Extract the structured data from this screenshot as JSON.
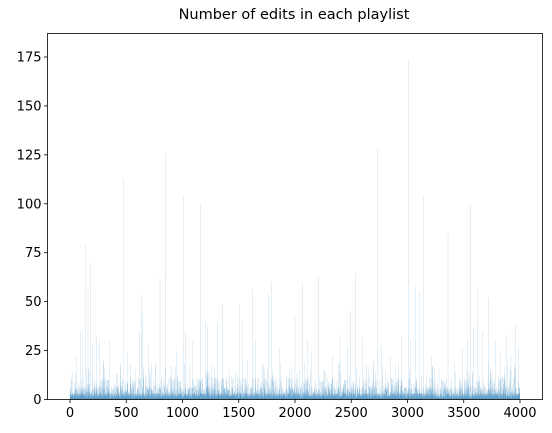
{
  "chart_data": {
    "type": "bar",
    "title": "Number of edits in each playlist",
    "xlabel": "",
    "ylabel": "",
    "xlim": [
      -200,
      4200
    ],
    "ylim": [
      0,
      187
    ],
    "x_ticks": [
      0,
      500,
      1000,
      1500,
      2000,
      2500,
      3000,
      3500,
      4000
    ],
    "y_ticks": [
      0,
      25,
      50,
      75,
      100,
      125,
      150,
      175
    ],
    "grid": false,
    "bar_color": "#1f77b4",
    "n_playlists": 4000,
    "spikes": [
      {
        "x": 60,
        "value": 22
      },
      {
        "x": 95,
        "value": 35
      },
      {
        "x": 108,
        "value": 33
      },
      {
        "x": 140,
        "value": 79
      },
      {
        "x": 160,
        "value": 57
      },
      {
        "x": 182,
        "value": 70
      },
      {
        "x": 200,
        "value": 28
      },
      {
        "x": 235,
        "value": 32
      },
      {
        "x": 262,
        "value": 31
      },
      {
        "x": 300,
        "value": 20
      },
      {
        "x": 350,
        "value": 30
      },
      {
        "x": 420,
        "value": 13
      },
      {
        "x": 478,
        "value": 113
      },
      {
        "x": 510,
        "value": 24
      },
      {
        "x": 535,
        "value": 18
      },
      {
        "x": 580,
        "value": 15
      },
      {
        "x": 618,
        "value": 35
      },
      {
        "x": 635,
        "value": 54
      },
      {
        "x": 648,
        "value": 44
      },
      {
        "x": 700,
        "value": 28
      },
      {
        "x": 760,
        "value": 17
      },
      {
        "x": 800,
        "value": 62
      },
      {
        "x": 845,
        "value": 126
      },
      {
        "x": 890,
        "value": 12
      },
      {
        "x": 945,
        "value": 25
      },
      {
        "x": 1010,
        "value": 104
      },
      {
        "x": 1025,
        "value": 35
      },
      {
        "x": 1090,
        "value": 30
      },
      {
        "x": 1160,
        "value": 100
      },
      {
        "x": 1205,
        "value": 40
      },
      {
        "x": 1225,
        "value": 37
      },
      {
        "x": 1260,
        "value": 18
      },
      {
        "x": 1310,
        "value": 39
      },
      {
        "x": 1355,
        "value": 49
      },
      {
        "x": 1420,
        "value": 15
      },
      {
        "x": 1510,
        "value": 49
      },
      {
        "x": 1530,
        "value": 40
      },
      {
        "x": 1580,
        "value": 20
      },
      {
        "x": 1625,
        "value": 56
      },
      {
        "x": 1650,
        "value": 30
      },
      {
        "x": 1720,
        "value": 18
      },
      {
        "x": 1765,
        "value": 54
      },
      {
        "x": 1790,
        "value": 60
      },
      {
        "x": 1860,
        "value": 26
      },
      {
        "x": 1940,
        "value": 11
      },
      {
        "x": 2000,
        "value": 43
      },
      {
        "x": 2065,
        "value": 60
      },
      {
        "x": 2110,
        "value": 31
      },
      {
        "x": 2150,
        "value": 25
      },
      {
        "x": 2205,
        "value": 63
      },
      {
        "x": 2260,
        "value": 15
      },
      {
        "x": 2330,
        "value": 23
      },
      {
        "x": 2400,
        "value": 33
      },
      {
        "x": 2470,
        "value": 27
      },
      {
        "x": 2495,
        "value": 45
      },
      {
        "x": 2535,
        "value": 65
      },
      {
        "x": 2600,
        "value": 32
      },
      {
        "x": 2650,
        "value": 16
      },
      {
        "x": 2700,
        "value": 20
      },
      {
        "x": 2730,
        "value": 128
      },
      {
        "x": 2765,
        "value": 27
      },
      {
        "x": 2850,
        "value": 22
      },
      {
        "x": 2950,
        "value": 32
      },
      {
        "x": 3005,
        "value": 174
      },
      {
        "x": 3030,
        "value": 30
      },
      {
        "x": 3070,
        "value": 58
      },
      {
        "x": 3110,
        "value": 55
      },
      {
        "x": 3140,
        "value": 104
      },
      {
        "x": 3210,
        "value": 22
      },
      {
        "x": 3280,
        "value": 16
      },
      {
        "x": 3360,
        "value": 85
      },
      {
        "x": 3420,
        "value": 19
      },
      {
        "x": 3490,
        "value": 26
      },
      {
        "x": 3530,
        "value": 30
      },
      {
        "x": 3560,
        "value": 100
      },
      {
        "x": 3585,
        "value": 37
      },
      {
        "x": 3620,
        "value": 58
      },
      {
        "x": 3670,
        "value": 35
      },
      {
        "x": 3720,
        "value": 52
      },
      {
        "x": 3780,
        "value": 30
      },
      {
        "x": 3830,
        "value": 25
      },
      {
        "x": 3880,
        "value": 33
      },
      {
        "x": 3920,
        "value": 23
      },
      {
        "x": 3960,
        "value": 38
      },
      {
        "x": 3985,
        "value": 27
      }
    ]
  }
}
